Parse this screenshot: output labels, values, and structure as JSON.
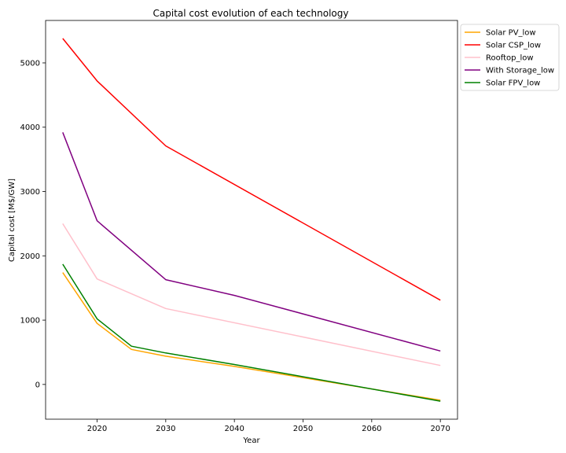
{
  "chart_data": {
    "type": "line",
    "title": "Capital cost evolution of each technology",
    "xlabel": "Year",
    "ylabel": "Capital cost [M$/GW]",
    "xlim": [
      2012.5,
      2072.5
    ],
    "ylim": [
      -540,
      5660
    ],
    "xticks": [
      2020,
      2030,
      2040,
      2050,
      2060,
      2070
    ],
    "yticks": [
      0,
      1000,
      2000,
      3000,
      4000,
      5000
    ],
    "grid": false,
    "legend_position": "outside-top-right",
    "series": [
      {
        "name": "Solar PV_low",
        "color": "#ffa500",
        "x": [
          2015,
          2020,
          2025,
          2030,
          2040,
          2070
        ],
        "values": [
          1740,
          950,
          545,
          440,
          280,
          -245
        ]
      },
      {
        "name": "Solar CSP_low",
        "color": "#ff0000",
        "x": [
          2015,
          2020,
          2030,
          2070
        ],
        "values": [
          5380,
          4720,
          3710,
          1310
        ]
      },
      {
        "name": "Rooftop_low",
        "color": "#ffc0cb",
        "x": [
          2015,
          2020,
          2030,
          2070
        ],
        "values": [
          2500,
          1640,
          1180,
          295
        ]
      },
      {
        "name": "With Storage_low",
        "color": "#800080",
        "x": [
          2015,
          2020,
          2030,
          2040,
          2070
        ],
        "values": [
          3920,
          2545,
          1630,
          1385,
          520
        ]
      },
      {
        "name": "Solar FPV_low",
        "color": "#008000",
        "x": [
          2015,
          2020,
          2025,
          2030,
          2040,
          2070
        ],
        "values": [
          1870,
          1020,
          595,
          490,
          310,
          -260
        ]
      }
    ]
  }
}
